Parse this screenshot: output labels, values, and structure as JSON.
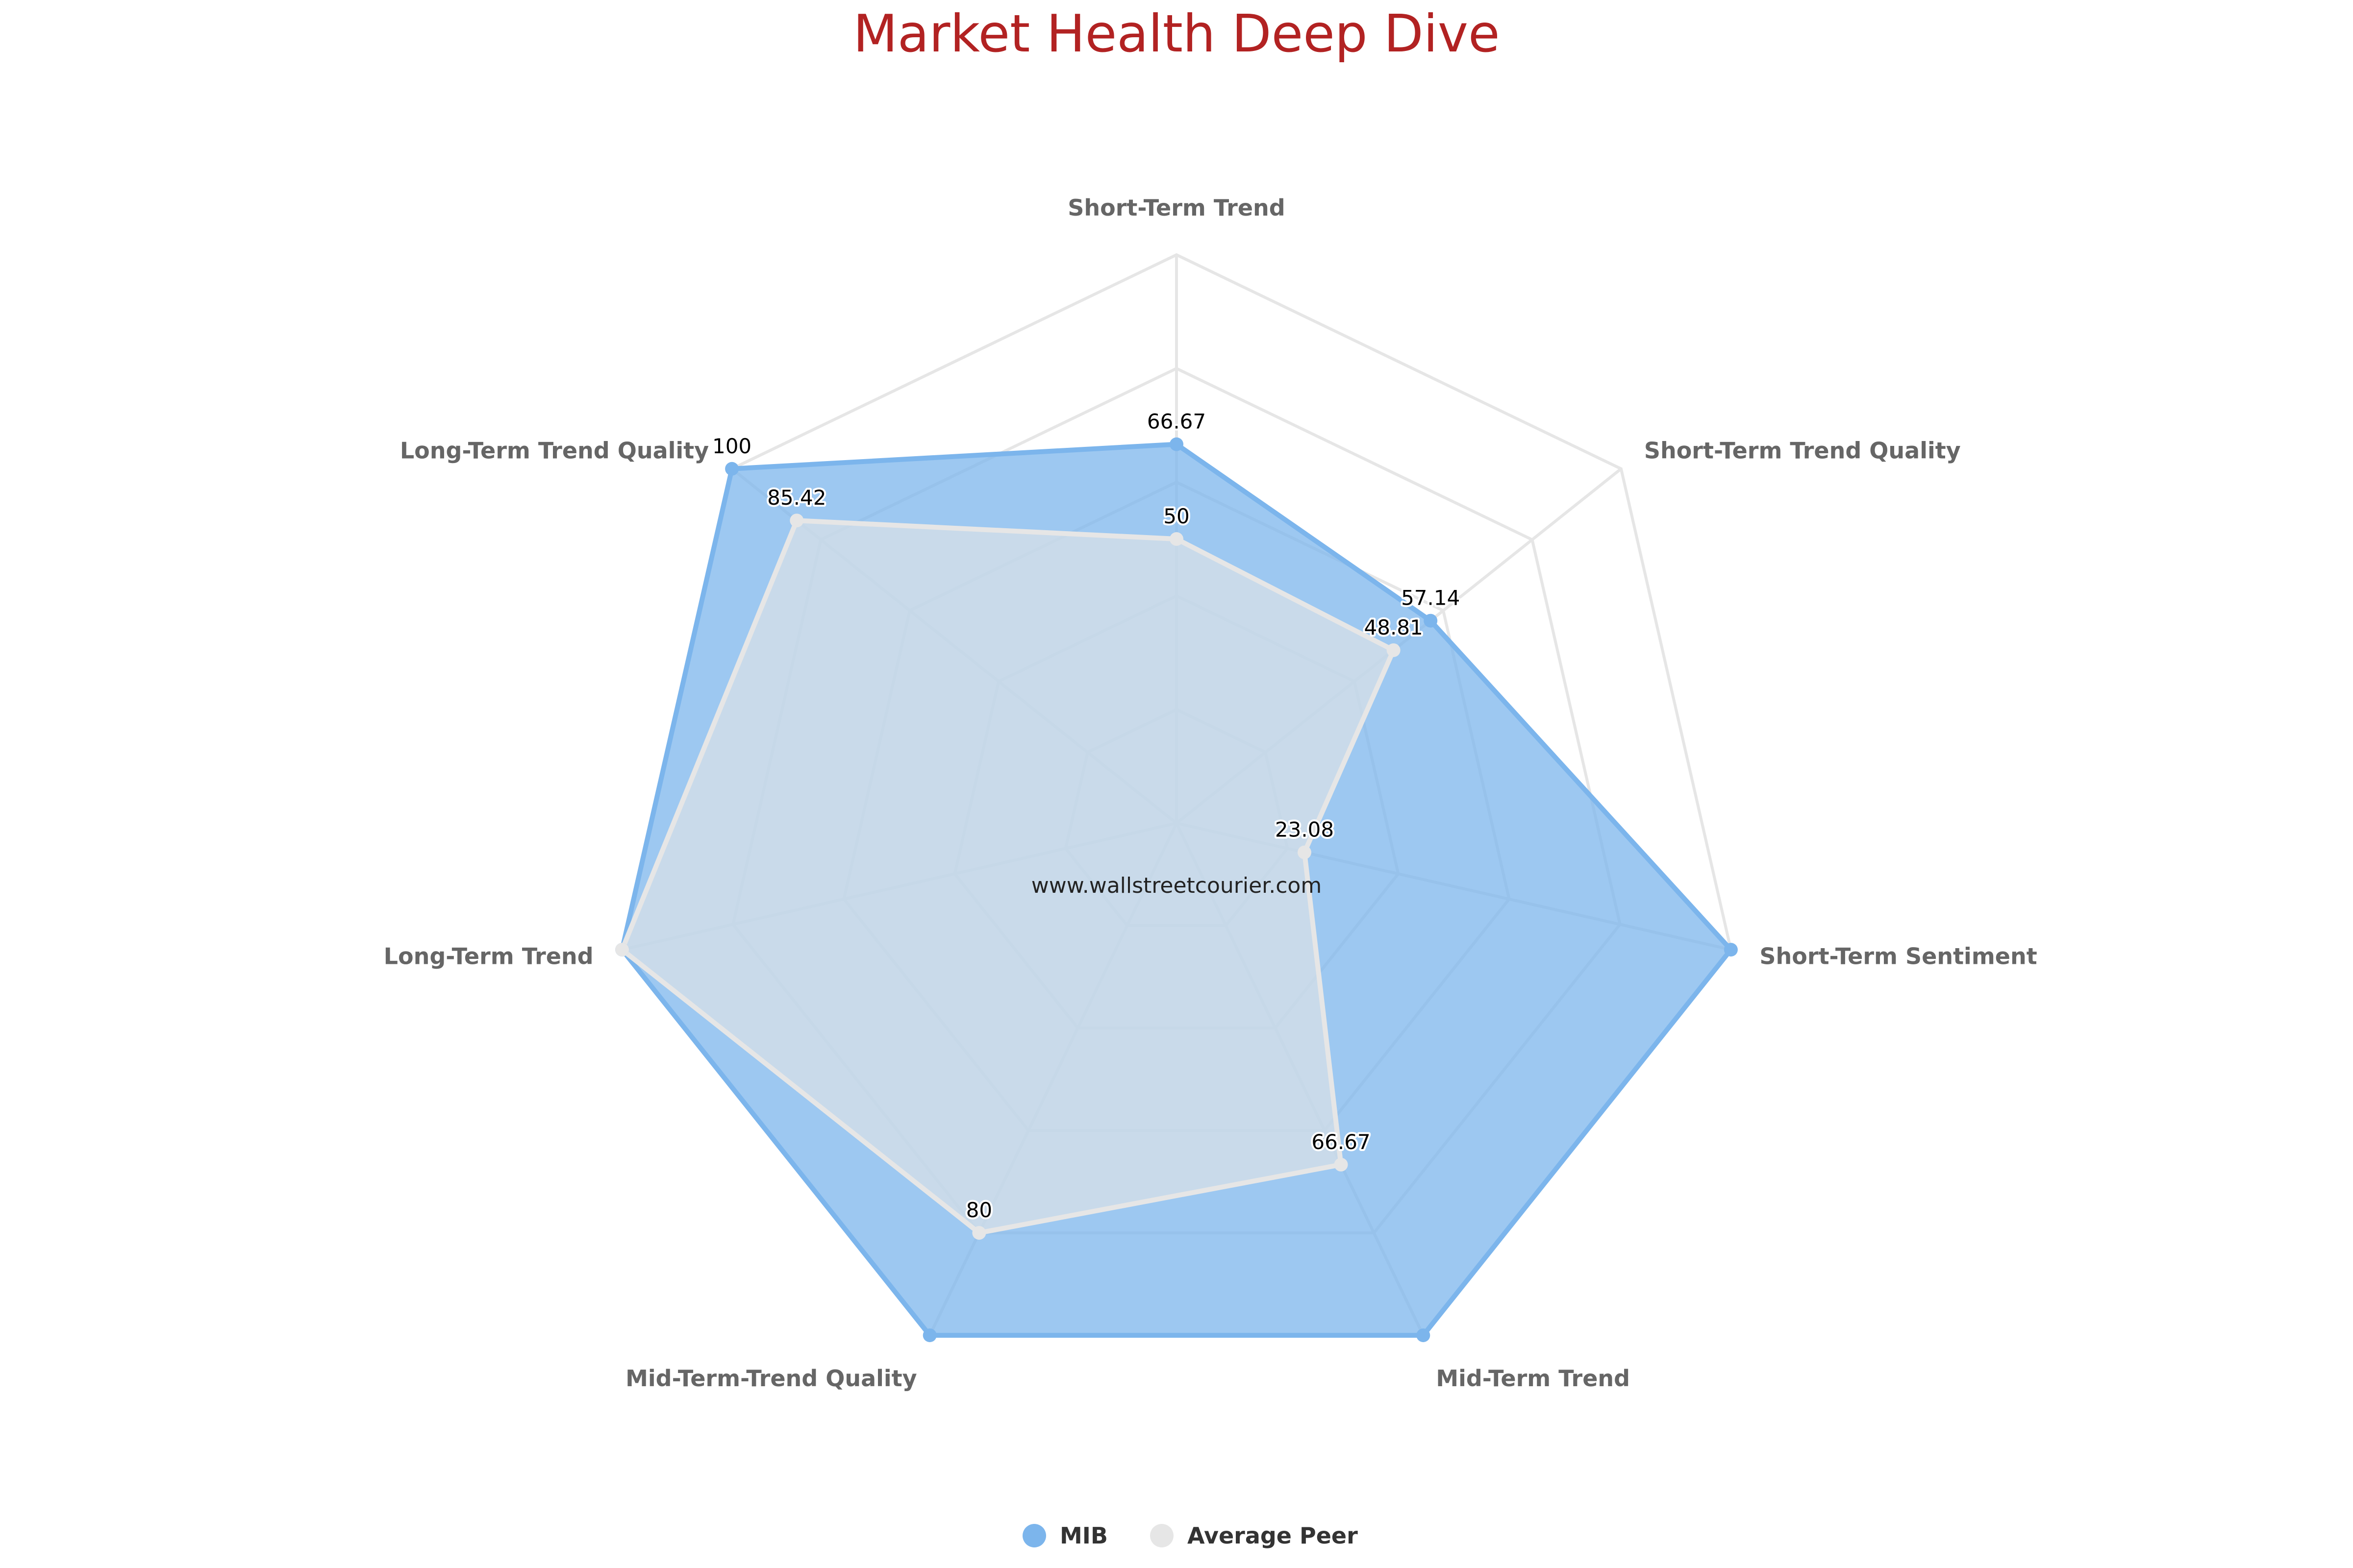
{
  "chart_data": {
    "type": "radar",
    "title": "Market Health Deep Dive",
    "axes": [
      "Short-Term Trend",
      "Short-Term Trend Quality",
      "Short-Term Sentiment",
      "Mid-Term Trend",
      "Mid-Term-Trend Quality",
      "Long-Term Trend",
      "Long-Term Trend Quality"
    ],
    "range": [
      0,
      100
    ],
    "gridlines": [
      20,
      40,
      60,
      80,
      100
    ],
    "series": [
      {
        "name": "MIB",
        "color": "#7cb5ec",
        "values": [
          66.67,
          57.14,
          100,
          100,
          100,
          100,
          100
        ],
        "labels": [
          "66.67",
          "57.14",
          "",
          "",
          "",
          "",
          "100"
        ]
      },
      {
        "name": "Average Peer",
        "color": "#e6e6e6",
        "values": [
          50,
          48.81,
          23.08,
          66.67,
          80,
          100,
          85.42
        ],
        "labels": [
          "50",
          "48.81",
          "23.08",
          "66.67",
          "80",
          "",
          "85.42"
        ]
      }
    ],
    "legend_placement": "bottom-center",
    "watermark": "www.wallstreetcourier.com"
  }
}
